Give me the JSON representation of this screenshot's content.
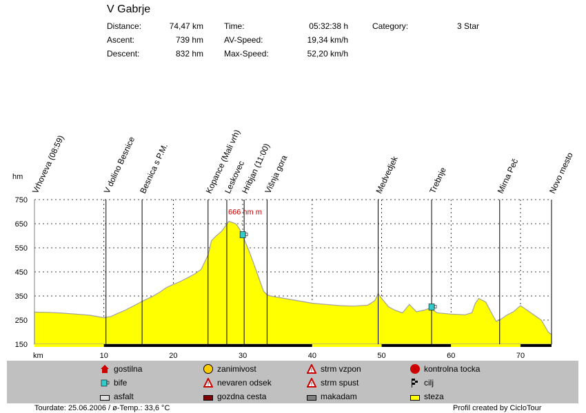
{
  "header": {
    "title": "V Gabrje",
    "stats": [
      {
        "label": "Distance:",
        "value": "74,47 km"
      },
      {
        "label": "Ascent:",
        "value": "739 hm"
      },
      {
        "label": "Descent:",
        "value": "832 hm"
      },
      {
        "label": "Time:",
        "value": "05:32:38 h"
      },
      {
        "label": "AV-Speed:",
        "value": "19,34 km/h"
      },
      {
        "label": "Max-Speed:",
        "value": "52,20 km/h"
      },
      {
        "label": "Category:",
        "value": "3 Star"
      }
    ]
  },
  "chart_data": {
    "type": "area",
    "ylabel": "hm",
    "xlabel": "km",
    "xlim": [
      0,
      74.47
    ],
    "ylim": [
      150,
      750
    ],
    "yticks": [
      150,
      250,
      350,
      450,
      550,
      650,
      750
    ],
    "xticks": [
      10,
      20,
      30,
      40,
      50,
      60,
      70
    ],
    "grid": true,
    "colors": {
      "fill": "#ffff00",
      "line": "#a0a0a0",
      "grid": "#000000"
    },
    "x": [
      0,
      2,
      4,
      6,
      8,
      10,
      11,
      12,
      13,
      14,
      15,
      16,
      17,
      18,
      19,
      20,
      21,
      22,
      23,
      24,
      25,
      25.5,
      26,
      27,
      28,
      29,
      29.5,
      30,
      31,
      32,
      33,
      33.5,
      34,
      35,
      36,
      38,
      40,
      42,
      44,
      46,
      48,
      49,
      49.5,
      50,
      51,
      52,
      53,
      54,
      55,
      56,
      57,
      58,
      60,
      62,
      63,
      63.5,
      64,
      65,
      66,
      66.5,
      67,
      68,
      69,
      70,
      71,
      72,
      73,
      74,
      74.47
    ],
    "y": [
      283,
      282,
      279,
      275,
      270,
      260,
      265,
      278,
      290,
      305,
      320,
      335,
      348,
      365,
      385,
      398,
      410,
      425,
      440,
      460,
      520,
      580,
      595,
      620,
      660,
      650,
      630,
      600,
      530,
      450,
      370,
      355,
      350,
      345,
      340,
      330,
      320,
      315,
      310,
      308,
      312,
      330,
      360,
      340,
      305,
      290,
      280,
      315,
      285,
      290,
      300,
      280,
      275,
      272,
      280,
      320,
      340,
      325,
      270,
      245,
      250,
      270,
      285,
      310,
      290,
      270,
      250,
      200,
      190
    ],
    "markers": [
      {
        "x": 0,
        "label": "Vrhoveva (08:59)"
      },
      {
        "x": 10.3,
        "label": "V dolino Besnice"
      },
      {
        "x": 15.5,
        "label": "Besnica s P.M."
      },
      {
        "x": 25,
        "label": "Kopance (Mali vrh)"
      },
      {
        "x": 27.7,
        "label": "Leskovec"
      },
      {
        "x": 30.2,
        "label": "Hribjan (11:00)"
      },
      {
        "x": 33.5,
        "label": "Višnja gora"
      },
      {
        "x": 49.5,
        "label": "Medvedjek"
      },
      {
        "x": 57.2,
        "label": "Trebnje"
      },
      {
        "x": 67,
        "label": "Mirna Peč"
      },
      {
        "x": 74.47,
        "label": "Novo mesto"
      }
    ],
    "annotation": {
      "text": "666 hm m",
      "x": 27.7
    },
    "bife_icons": [
      {
        "x": 30,
        "y": 600
      },
      {
        "x": 57.2,
        "y": 300
      }
    ]
  },
  "legend": {
    "items": [
      {
        "label": "gostilna",
        "icon": "house-icon",
        "color": "#cc0000"
      },
      {
        "label": "bife",
        "icon": "cup-icon",
        "color": "#33cccc"
      },
      {
        "label": "asfalt",
        "icon": "surface-asphalt-icon",
        "color": "#e0e0e0"
      },
      {
        "label": "zanimivost",
        "icon": "smiley-icon",
        "color": "#ffcc00"
      },
      {
        "label": "nevaren odsek",
        "icon": "warning-icon",
        "color": "#cc0000"
      },
      {
        "label": "gozdna cesta",
        "icon": "surface-forest-icon",
        "color": "#800000"
      },
      {
        "label": "strm vzpon",
        "icon": "steep-up-icon",
        "color": "#cc0000"
      },
      {
        "label": "strm spust",
        "icon": "steep-down-icon",
        "color": "#cc0000"
      },
      {
        "label": "makadam",
        "icon": "surface-gravel-icon",
        "color": "#808080"
      },
      {
        "label": "kontrolna tocka",
        "icon": "stop-sign-icon",
        "color": "#cc0000"
      },
      {
        "label": "cilj",
        "icon": "finish-flag-icon",
        "color": "#000000"
      },
      {
        "label": "steza",
        "icon": "surface-trail-icon",
        "color": "#ffff00"
      }
    ]
  },
  "footer": {
    "left": "Tourdate: 25.06.2006  /  ø-Temp.: 33,6 °C",
    "right": "Profil created by CicloTour"
  }
}
